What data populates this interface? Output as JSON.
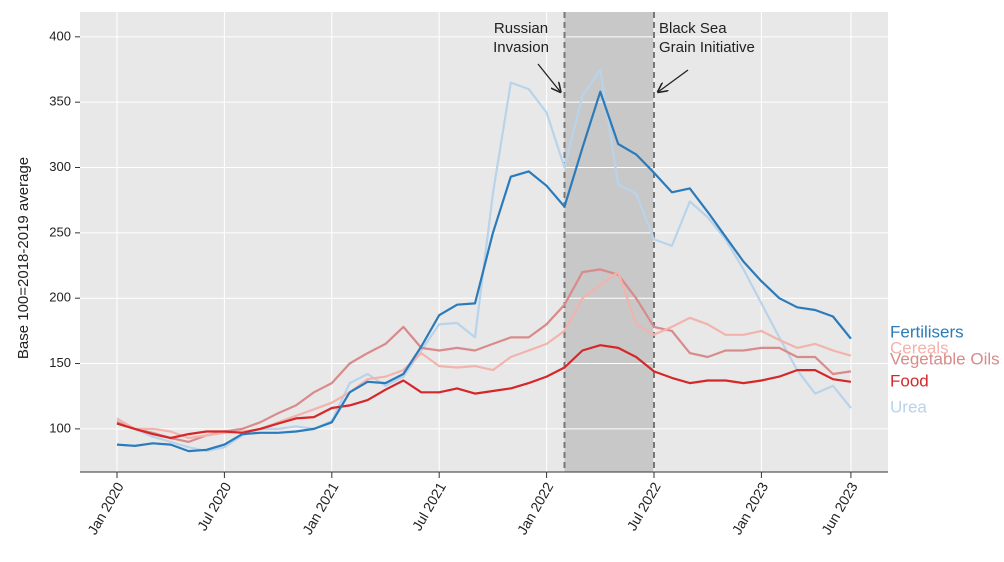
{
  "chart_data": {
    "type": "line",
    "ylabel": "Base 100=2018-2019 average",
    "categories": [
      "Jan 2020",
      null,
      null,
      null,
      null,
      null,
      "Jul 2020",
      null,
      null,
      null,
      null,
      null,
      "Jan 2021",
      null,
      null,
      null,
      null,
      null,
      "Jul 2021",
      null,
      null,
      null,
      null,
      null,
      "Jan 2022",
      null,
      null,
      null,
      null,
      null,
      "Jul 2022",
      null,
      null,
      null,
      null,
      null,
      "Jan 2023",
      null,
      null,
      null,
      null,
      "Jun 2023"
    ],
    "ylim": [
      67,
      419
    ],
    "yticks": [
      100,
      150,
      200,
      250,
      300,
      350,
      400
    ],
    "grid": true,
    "shade": [
      25,
      30
    ],
    "annotations": [
      {
        "text": [
          "Russian",
          "Invasion"
        ],
        "x": 25
      },
      {
        "text": [
          "Black Sea",
          "Grain Initiative"
        ],
        "x": 30
      }
    ],
    "series": [
      {
        "name": "Fertilisers",
        "color": "#2b7bba",
        "values": [
          88,
          87,
          89,
          88,
          83,
          84,
          88,
          96,
          97,
          97,
          98,
          100,
          105,
          128,
          136,
          135,
          142,
          163,
          187,
          195,
          196,
          250,
          293,
          297,
          286,
          270,
          315,
          358,
          318,
          310,
          296,
          281,
          284,
          266,
          247,
          228,
          213,
          200,
          193,
          191,
          186,
          169
        ]
      },
      {
        "name": "Cereals",
        "color": "#f3b3ad",
        "values": [
          108,
          100,
          100,
          98,
          93,
          95,
          97,
          98,
          100,
          105,
          110,
          115,
          120,
          128,
          138,
          140,
          145,
          158,
          148,
          147,
          148,
          145,
          155,
          160,
          165,
          175,
          200,
          210,
          220,
          180,
          172,
          178,
          185,
          180,
          172,
          172,
          175,
          168,
          162,
          165,
          160,
          156
        ]
      },
      {
        "name": "Vegetable Oils",
        "color": "#d98a8a",
        "values": [
          105,
          100,
          97,
          93,
          90,
          95,
          98,
          100,
          105,
          112,
          118,
          128,
          135,
          150,
          158,
          165,
          178,
          162,
          160,
          162,
          160,
          165,
          170,
          170,
          180,
          195,
          220,
          222,
          218,
          200,
          178,
          175,
          158,
          155,
          160,
          160,
          162,
          162,
          155,
          155,
          142,
          144
        ]
      },
      {
        "name": "Food",
        "color": "#d62728",
        "values": [
          104,
          100,
          96,
          93,
          96,
          98,
          98,
          97,
          100,
          104,
          108,
          109,
          116,
          118,
          122,
          130,
          137,
          128,
          128,
          131,
          127,
          129,
          131,
          135,
          140,
          147,
          160,
          164,
          162,
          155,
          144,
          139,
          135,
          137,
          137,
          135,
          137,
          140,
          145,
          145,
          138,
          136
        ]
      },
      {
        "name": "Urea",
        "color": "#b8d3ea",
        "values": [
          106,
          100,
          94,
          90,
          86,
          83,
          86,
          95,
          100,
          100,
          102,
          100,
          106,
          135,
          142,
          133,
          140,
          160,
          180,
          181,
          170,
          280,
          365,
          360,
          342,
          300,
          355,
          375,
          287,
          280,
          245,
          240,
          274,
          262,
          245,
          222,
          196,
          170,
          145,
          127,
          133,
          116
        ]
      }
    ]
  }
}
